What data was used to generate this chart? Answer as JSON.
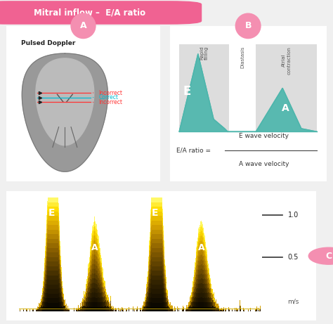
{
  "title": "Mitral inflow –  E/A ratio",
  "title_bg": "#F06292",
  "title_text_color": "white",
  "bg_color": "#f0f0f0",
  "panel_bg": "white",
  "circle_color": "#F48FB1",
  "teal_color": "#4DB6AC",
  "gray_section": "#DDDDDD",
  "white_section": "#FFFFFF",
  "doppler_label": "Pulsed Doppler",
  "incorrect_color": "#FF3333",
  "correct_color": "#00BCD4",
  "heart_outer": "#999999",
  "heart_inner": "#BBBBBB",
  "scale_bar_bg": "#CCCCCC",
  "scale_line_color": "#444444",
  "ea_formula_left": "E/A ratio =",
  "ea_formula_num": "E wave velocity",
  "ea_formula_den": "A wave velocity",
  "scale_1p0": "1.0",
  "scale_0p5": "0.5",
  "scale_unit": "m/s"
}
